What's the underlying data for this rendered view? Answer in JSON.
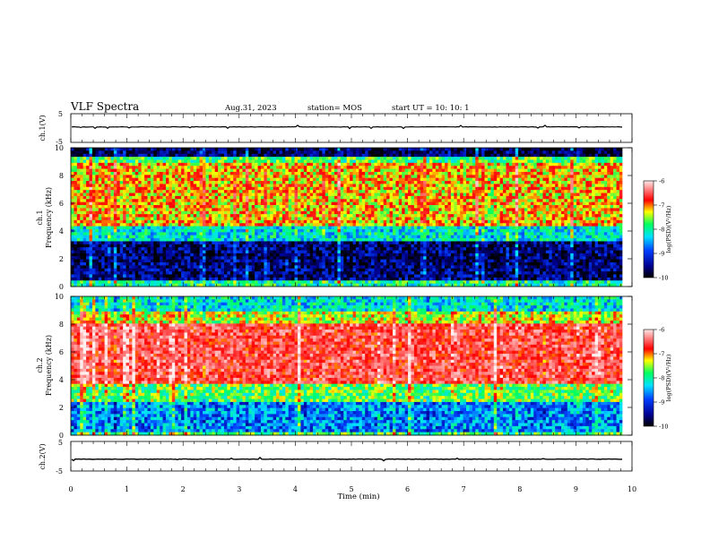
{
  "header": {
    "title": "VLF Spectra",
    "date": "Aug.31, 2023",
    "station": "station= MOS",
    "start_ut": "start  UT =   10: 10: 1"
  },
  "chart_data": [
    {
      "type": "line",
      "panel": "ch1-waveform",
      "ylabel": "ch.1(V)",
      "ylim": [
        -5,
        5
      ],
      "yticks": [
        "5",
        "-5"
      ],
      "xlim": [
        0,
        10
      ],
      "series": [
        {
          "values_constant": 0.4
        }
      ]
    },
    {
      "type": "heatmap",
      "panel": "ch1-spectrogram",
      "ylabel_line1": "ch.1",
      "ylabel_line2": "Frequency (kHz)",
      "ylim": [
        0,
        10
      ],
      "yticks": [
        "0",
        "2",
        "4",
        "6",
        "8",
        "10"
      ],
      "xlim": [
        0,
        10
      ],
      "colorbar": {
        "label": "log(PSD)(V²/Hz)",
        "range": [
          -10,
          -6
        ],
        "ticks": [
          "-6",
          "-7",
          "-8",
          "-9",
          "-10"
        ]
      },
      "bands_khz": [
        {
          "from": 0,
          "to": 0.4,
          "level": -8.2
        },
        {
          "from": 0.4,
          "to": 3.2,
          "level": -9.6
        },
        {
          "from": 3.2,
          "to": 4.4,
          "level": -8.4
        },
        {
          "from": 4.4,
          "to": 8.9,
          "level": -7.4
        },
        {
          "from": 8.9,
          "to": 9.3,
          "level": -8.0
        },
        {
          "from": 9.3,
          "to": 10,
          "level": -9.7
        }
      ]
    },
    {
      "type": "heatmap",
      "panel": "ch2-spectrogram",
      "ylabel_line1": "ch.2",
      "ylabel_line2": "Frequency (kHz)",
      "ylim": [
        0,
        10
      ],
      "yticks": [
        "0",
        "2",
        "4",
        "6",
        "8",
        "10"
      ],
      "xlim": [
        0,
        10
      ],
      "colorbar": {
        "label": "log(PSD)(V²/Hz)",
        "range": [
          -10,
          -6
        ],
        "ticks": [
          "-6",
          "-7",
          "-8",
          "-9",
          "-10"
        ]
      },
      "bands_khz": [
        {
          "from": 0,
          "to": 0.3,
          "level": -8.0
        },
        {
          "from": 0.3,
          "to": 2.5,
          "level": -8.8
        },
        {
          "from": 2.5,
          "to": 3.6,
          "level": -7.9
        },
        {
          "from": 3.6,
          "to": 8.0,
          "level": -6.7
        },
        {
          "from": 8.0,
          "to": 9.0,
          "level": -7.6
        },
        {
          "from": 9.0,
          "to": 10,
          "level": -8.4
        }
      ]
    },
    {
      "type": "line",
      "panel": "ch2-waveform",
      "ylabel": "ch.2(V)",
      "ylim": [
        -5,
        5
      ],
      "yticks": [
        "5",
        "-5"
      ],
      "xlim": [
        0,
        10
      ],
      "xlabel": "Time  (min)",
      "xticks": [
        "0",
        "1",
        "2",
        "3",
        "4",
        "5",
        "6",
        "7",
        "8",
        "9",
        "10"
      ],
      "series": [
        {
          "values_constant": -1.0
        }
      ]
    }
  ],
  "colors": {
    "scale": [
      "#000080",
      "#0000ff",
      "#00c0ff",
      "#00ff80",
      "#ffff00",
      "#ff0000",
      "#ffffff"
    ]
  }
}
